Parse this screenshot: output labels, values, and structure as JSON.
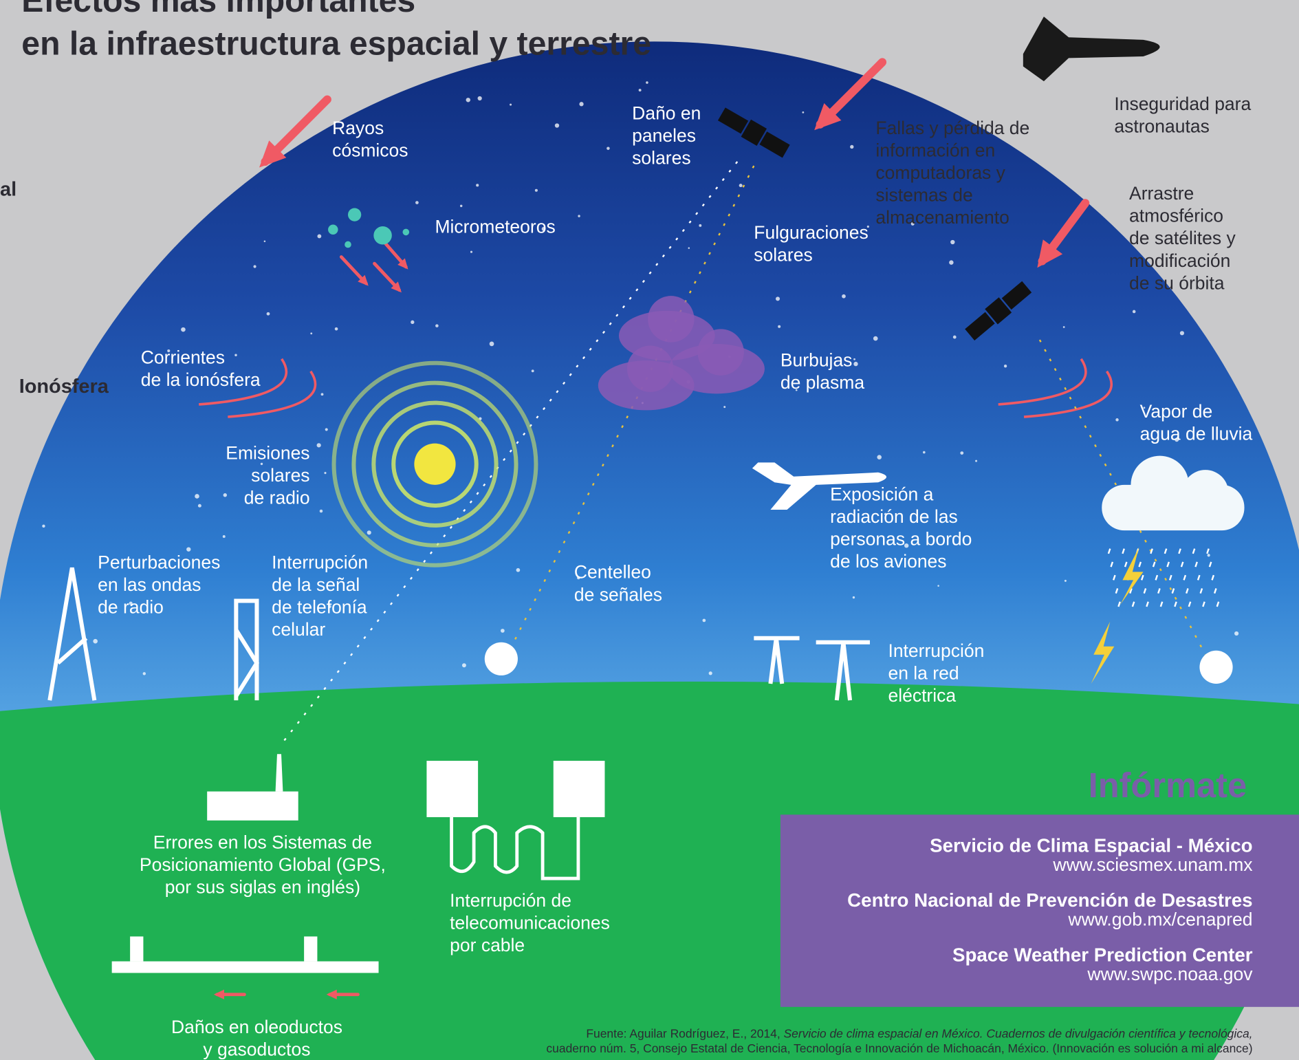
{
  "title": [
    "Efectos más importantes",
    "en la infraestructura espacial y terrestre"
  ],
  "side_labels": [
    "al",
    "Ionósfera"
  ],
  "labels": [
    {
      "lines": [
        "Rayos",
        "cósmicos"
      ]
    },
    {
      "lines": [
        "Micrometeoros"
      ]
    },
    {
      "lines": [
        "Daño en",
        "paneles",
        "solares"
      ]
    },
    {
      "lines": [
        "Fallas y pérdida de",
        "información en",
        "computadoras y",
        "sistemas de",
        "almacenamiento"
      ]
    },
    {
      "lines": [
        "Inseguridad  para",
        "astronautas"
      ]
    },
    {
      "lines": [
        "Arrastre",
        "atmosférico",
        "de satélites y",
        "modificación",
        "de su órbita"
      ]
    },
    {
      "lines": [
        "Fulguraciones",
        "solares"
      ]
    },
    {
      "lines": [
        "Corrientes",
        "de la ionósfera"
      ]
    },
    {
      "lines": [
        "Burbujas",
        "de plasma"
      ]
    },
    {
      "lines": [
        "Vapor de",
        "agua de lluvia"
      ]
    },
    {
      "lines": [
        "Emisiones",
        "solares",
        "de radio"
      ]
    },
    {
      "lines": [
        "Exposición a",
        "radiación de las",
        "personas a bordo",
        "de los aviones"
      ]
    },
    {
      "lines": [
        "Perturbaciones",
        "en las ondas",
        "de radio"
      ]
    },
    {
      "lines": [
        "Interrupción",
        "de la señal",
        "de telefonía",
        "celular"
      ]
    },
    {
      "lines": [
        "Centelleo",
        "de señales"
      ]
    },
    {
      "lines": [
        "Interrupción",
        "en la red",
        "eléctrica"
      ]
    },
    {
      "lines": [
        "Errores en los Sistemas de",
        "Posicionamiento Global (GPS,",
        "por sus siglas en inglés)"
      ]
    },
    {
      "lines": [
        "Interrupción de",
        "telecomunicaciones",
        "por cable"
      ]
    },
    {
      "lines": [
        "Daños en oleoductos",
        "y gasoductos"
      ]
    }
  ],
  "informate": {
    "heading": "Infórmate",
    "entries": [
      {
        "name": "Servicio de Clima Espacial - México",
        "url": "www.sciesmex.unam.mx"
      },
      {
        "name": "Centro Nacional de Prevención de Desastres",
        "url": "www.gob.mx/cenapred"
      },
      {
        "name": "Space Weather Prediction Center",
        "url": "www.swpc.noaa.gov"
      }
    ]
  },
  "source": {
    "prefix": "Fuente: Aguilar Rodríguez, E., 2014, ",
    "italic": "Servicio de clima espacial en México. Cuadernos de divulgación científica y tecnológica,",
    "line2": "cuaderno núm. 5, Consejo Estatal de Ciencia, Tecnología e Innovación de Michoacán, México. (Innovación es solución a mi alcance)"
  }
}
